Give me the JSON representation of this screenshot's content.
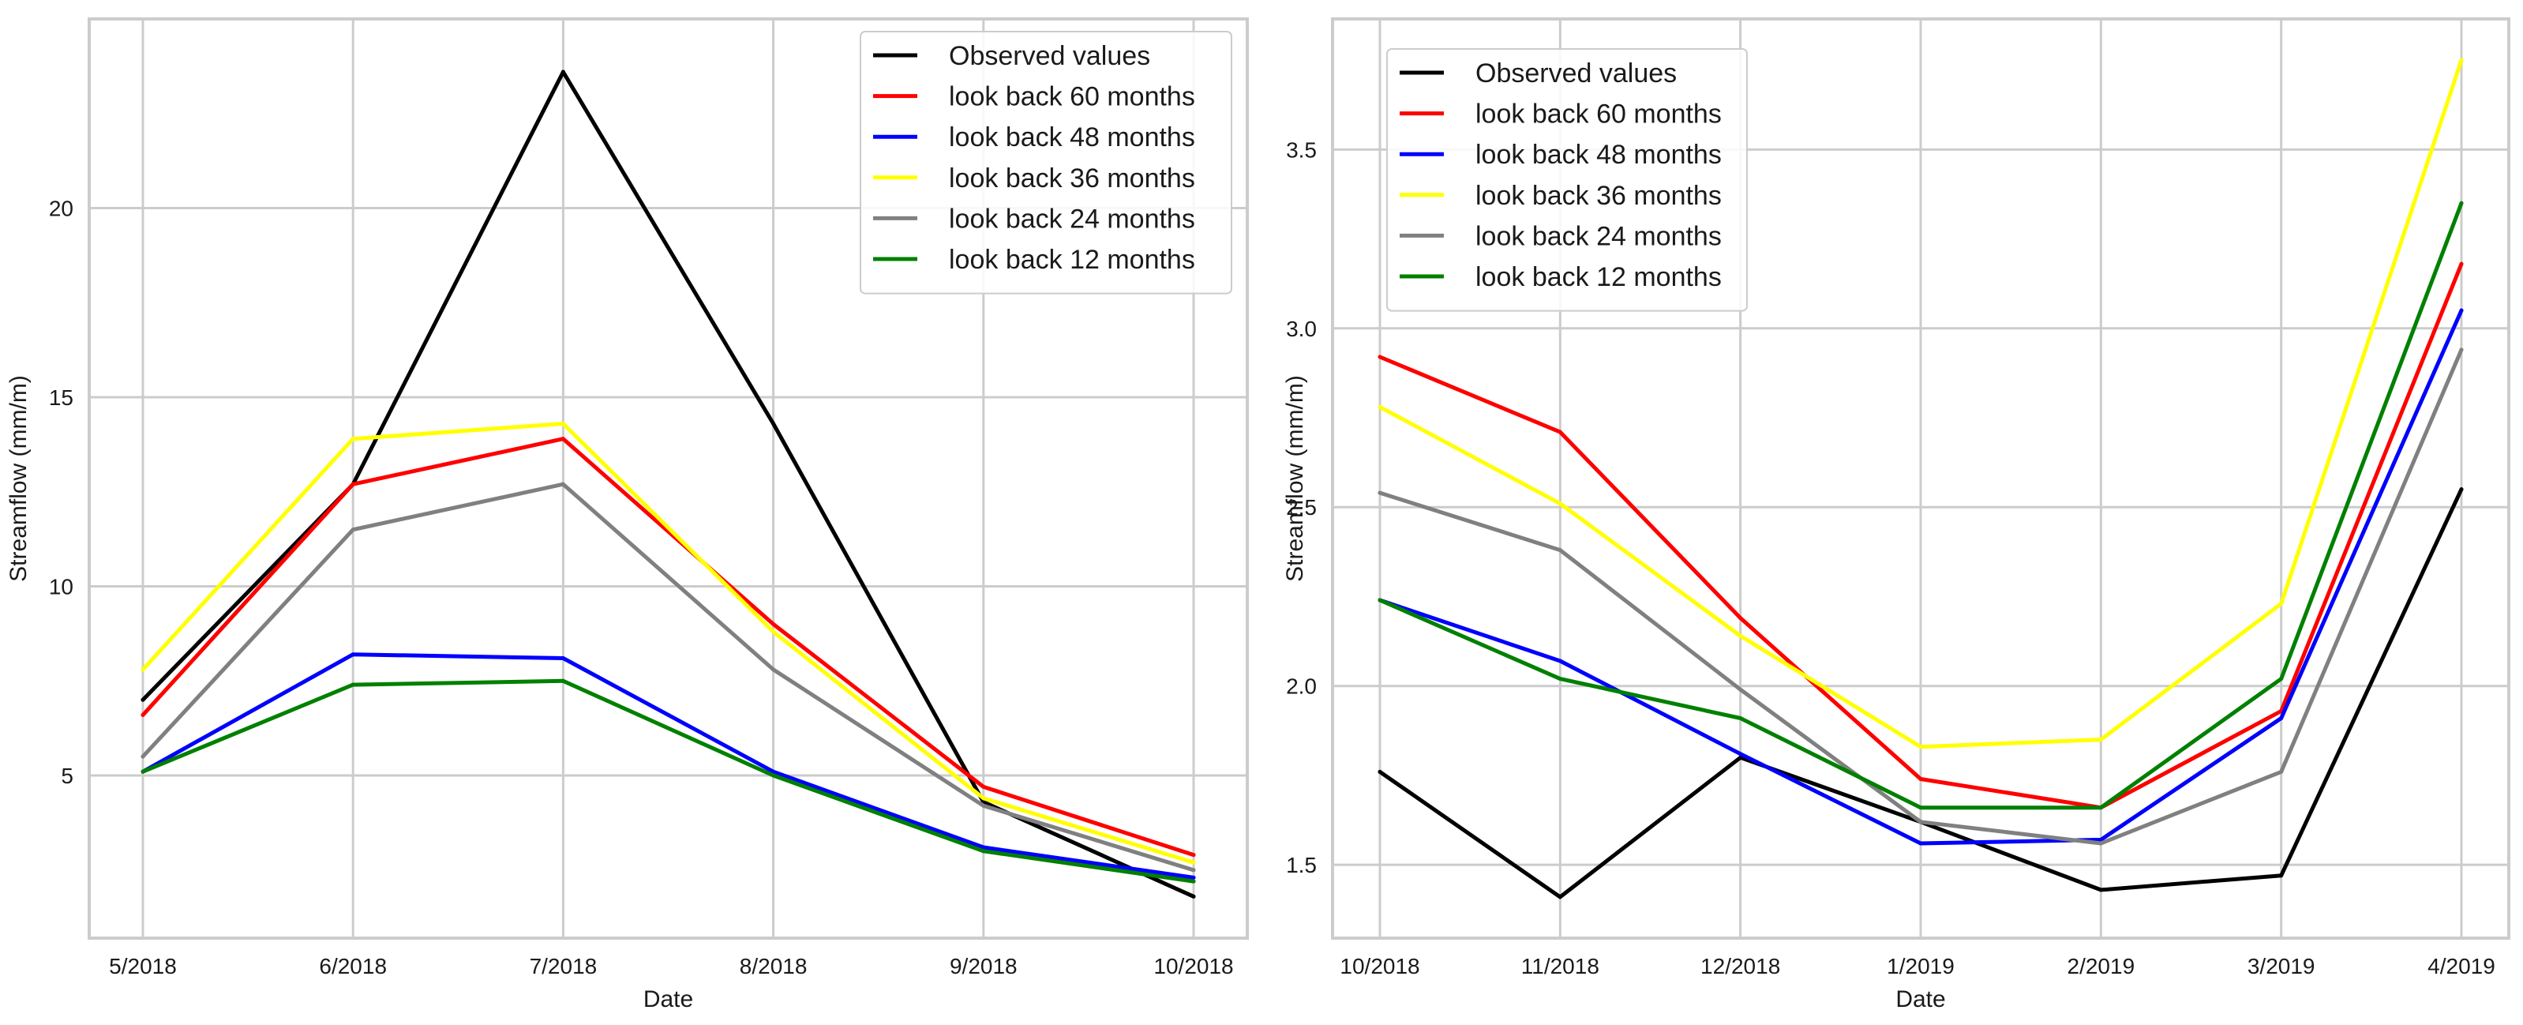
{
  "chart_data": [
    {
      "type": "line",
      "title": "",
      "xlabel": "Date",
      "ylabel": "Streamflow (mm/m)",
      "categories": [
        "5/2018",
        "6/2018",
        "7/2018",
        "8/2018",
        "9/2018",
        "10/2018"
      ],
      "ylim": [
        0.7,
        25.0
      ],
      "yticks": [
        5,
        10,
        15,
        20
      ],
      "ytick_labels": [
        "5",
        "10",
        "15",
        "20"
      ],
      "grid": true,
      "legend_position": "top-right",
      "series": [
        {
          "name": "Observed values",
          "color": "#000000",
          "values": [
            7.0,
            12.7,
            23.6,
            14.3,
            4.3,
            1.8
          ]
        },
        {
          "name": "look back 60 months",
          "color": "#ff0000",
          "values": [
            6.6,
            12.7,
            13.9,
            9.0,
            4.7,
            2.9
          ]
        },
        {
          "name": "look back 48 months",
          "color": "#0000ff",
          "values": [
            5.1,
            8.2,
            8.1,
            5.1,
            3.1,
            2.3
          ]
        },
        {
          "name": "look back 36 months",
          "color": "#ffff00",
          "values": [
            7.8,
            13.9,
            14.3,
            8.8,
            4.4,
            2.7
          ]
        },
        {
          "name": "look back 24 months",
          "color": "#808080",
          "values": [
            5.5,
            11.5,
            12.7,
            7.8,
            4.2,
            2.5
          ]
        },
        {
          "name": "look back 12 months",
          "color": "#008000",
          "values": [
            5.1,
            7.4,
            7.5,
            5.0,
            3.0,
            2.2
          ]
        }
      ]
    },
    {
      "type": "line",
      "title": "",
      "xlabel": "Date",
      "ylabel": "Streamflow (mm/m)",
      "categories": [
        "10/2018",
        "11/2018",
        "12/2018",
        "1/2019",
        "2/2019",
        "3/2019",
        "4/2019"
      ],
      "ylim": [
        1.295,
        3.865
      ],
      "yticks": [
        1.5,
        2.0,
        2.5,
        3.0,
        3.5
      ],
      "ytick_labels": [
        "1.5",
        "2.0",
        "2.5",
        "3.0",
        "3.5"
      ],
      "grid": true,
      "legend_position": "top-left",
      "series": [
        {
          "name": "Observed values",
          "color": "#000000",
          "values": [
            1.76,
            1.41,
            1.8,
            1.62,
            1.43,
            1.47,
            2.55
          ]
        },
        {
          "name": "look back 60 months",
          "color": "#ff0000",
          "values": [
            2.92,
            2.71,
            2.19,
            1.74,
            1.66,
            1.93,
            3.18
          ]
        },
        {
          "name": "look back 48 months",
          "color": "#0000ff",
          "values": [
            2.24,
            2.07,
            1.81,
            1.56,
            1.57,
            1.91,
            3.05
          ]
        },
        {
          "name": "look back 36 months",
          "color": "#ffff00",
          "values": [
            2.78,
            2.51,
            2.14,
            1.83,
            1.85,
            2.23,
            3.75
          ]
        },
        {
          "name": "look back 24 months",
          "color": "#808080",
          "values": [
            2.54,
            2.38,
            1.99,
            1.62,
            1.56,
            1.76,
            2.94
          ]
        },
        {
          "name": "look back 12 months",
          "color": "#008000",
          "values": [
            2.24,
            2.02,
            1.91,
            1.66,
            1.66,
            2.02,
            3.35
          ]
        }
      ]
    }
  ]
}
